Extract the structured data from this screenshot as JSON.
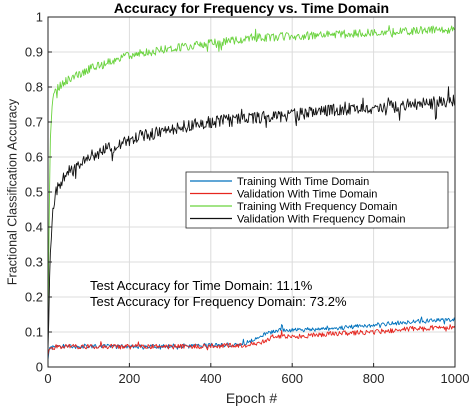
{
  "chart_data": {
    "type": "line",
    "title": "Accuracy for Frequency vs. Time Domain",
    "xlabel": "Epoch #",
    "ylabel": "Fractional Classification Accuracy",
    "xlim": [
      0,
      1000
    ],
    "ylim": [
      0,
      1
    ],
    "xticks": [
      0,
      200,
      400,
      600,
      800,
      1000
    ],
    "yticks": [
      0,
      0.1,
      0.2,
      0.3,
      0.4,
      0.5,
      0.6,
      0.7,
      0.8,
      0.9,
      1
    ],
    "ytick_labels": [
      "0",
      "0.1",
      "0.2",
      "0.3",
      "0.4",
      "0.5",
      "0.6",
      "0.7",
      "0.8",
      "0.9",
      "1"
    ],
    "grid": true,
    "legend_position": "center-right",
    "series": [
      {
        "name": "Training With Time Domain",
        "color": "#0072BD",
        "x": [
          0,
          2,
          5,
          10,
          20,
          50,
          100,
          200,
          300,
          400,
          480,
          500,
          520,
          540,
          560,
          600,
          700,
          800,
          900,
          1000
        ],
        "y": [
          0.02,
          0.04,
          0.06,
          0.055,
          0.06,
          0.058,
          0.06,
          0.058,
          0.06,
          0.062,
          0.065,
          0.075,
          0.085,
          0.1,
          0.105,
          0.105,
          0.11,
          0.12,
          0.13,
          0.135
        ],
        "noise": 0.006
      },
      {
        "name": "Validation With Time Domain",
        "color": "#E6261F",
        "x": [
          0,
          2,
          5,
          10,
          20,
          50,
          100,
          200,
          300,
          400,
          480,
          500,
          520,
          540,
          560,
          600,
          700,
          800,
          900,
          1000
        ],
        "y": [
          0.03,
          0.05,
          0.055,
          0.055,
          0.058,
          0.058,
          0.058,
          0.058,
          0.058,
          0.06,
          0.062,
          0.066,
          0.07,
          0.08,
          0.09,
          0.085,
          0.095,
          0.1,
          0.11,
          0.115
        ],
        "noise": 0.007
      },
      {
        "name": "Training With Frequency Domain",
        "color": "#6BD33F",
        "x": [
          0,
          3,
          6,
          10,
          15,
          25,
          50,
          100,
          200,
          300,
          400,
          500,
          600,
          700,
          800,
          900,
          1000
        ],
        "y": [
          0.05,
          0.45,
          0.65,
          0.74,
          0.78,
          0.8,
          0.82,
          0.85,
          0.89,
          0.91,
          0.925,
          0.94,
          0.945,
          0.95,
          0.955,
          0.96,
          0.965
        ],
        "noise": 0.012
      },
      {
        "name": "Validation With Frequency Domain",
        "color": "#111111",
        "x": [
          0,
          3,
          6,
          10,
          15,
          25,
          50,
          100,
          200,
          300,
          400,
          500,
          600,
          700,
          800,
          900,
          1000
        ],
        "y": [
          0.05,
          0.2,
          0.33,
          0.42,
          0.48,
          0.52,
          0.56,
          0.6,
          0.65,
          0.68,
          0.7,
          0.71,
          0.72,
          0.735,
          0.74,
          0.75,
          0.76
        ],
        "noise": 0.018
      }
    ],
    "annotations": [
      "Test Accuracy for Time Domain: 11.1%",
      "Test Accuracy for Frequency Domain: 73.2%"
    ]
  }
}
